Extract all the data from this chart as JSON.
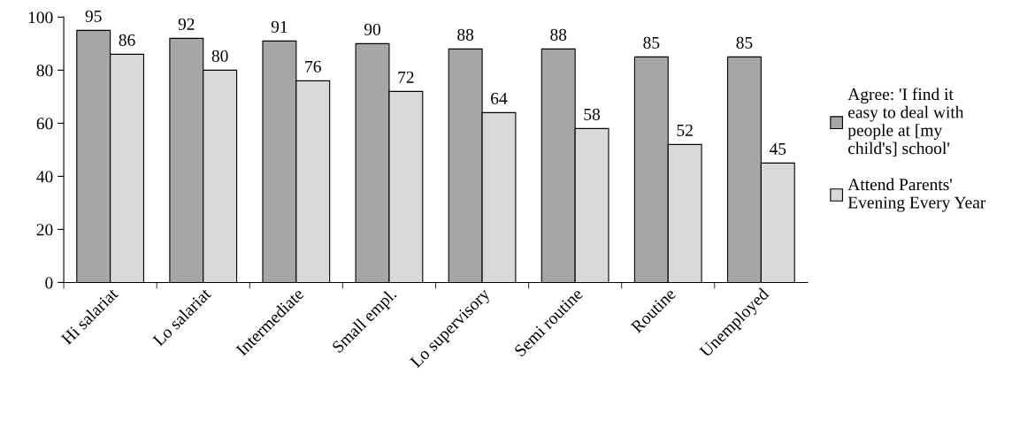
{
  "chart_data": {
    "type": "bar",
    "categories": [
      "Hi salariat",
      "Lo salariat",
      "Intermediate",
      "Small empl.",
      "Lo supervisory",
      "Semi routine",
      "Routine",
      "Unemployed"
    ],
    "series": [
      {
        "name": "Agree: 'I find it easy to deal with people at [my child's] school'",
        "color": "#a6a6a6",
        "values": [
          95,
          92,
          91,
          90,
          88,
          88,
          85,
          85
        ]
      },
      {
        "name": "Attend Parents' Evening Every Year",
        "color": "#d9d9d9",
        "values": [
          86,
          80,
          76,
          72,
          64,
          58,
          52,
          45
        ]
      }
    ],
    "ylim": [
      0,
      100
    ],
    "yticks": [
      0,
      20,
      40,
      60,
      80,
      100
    ],
    "grid": false,
    "legend": "right",
    "data_labels": true
  }
}
